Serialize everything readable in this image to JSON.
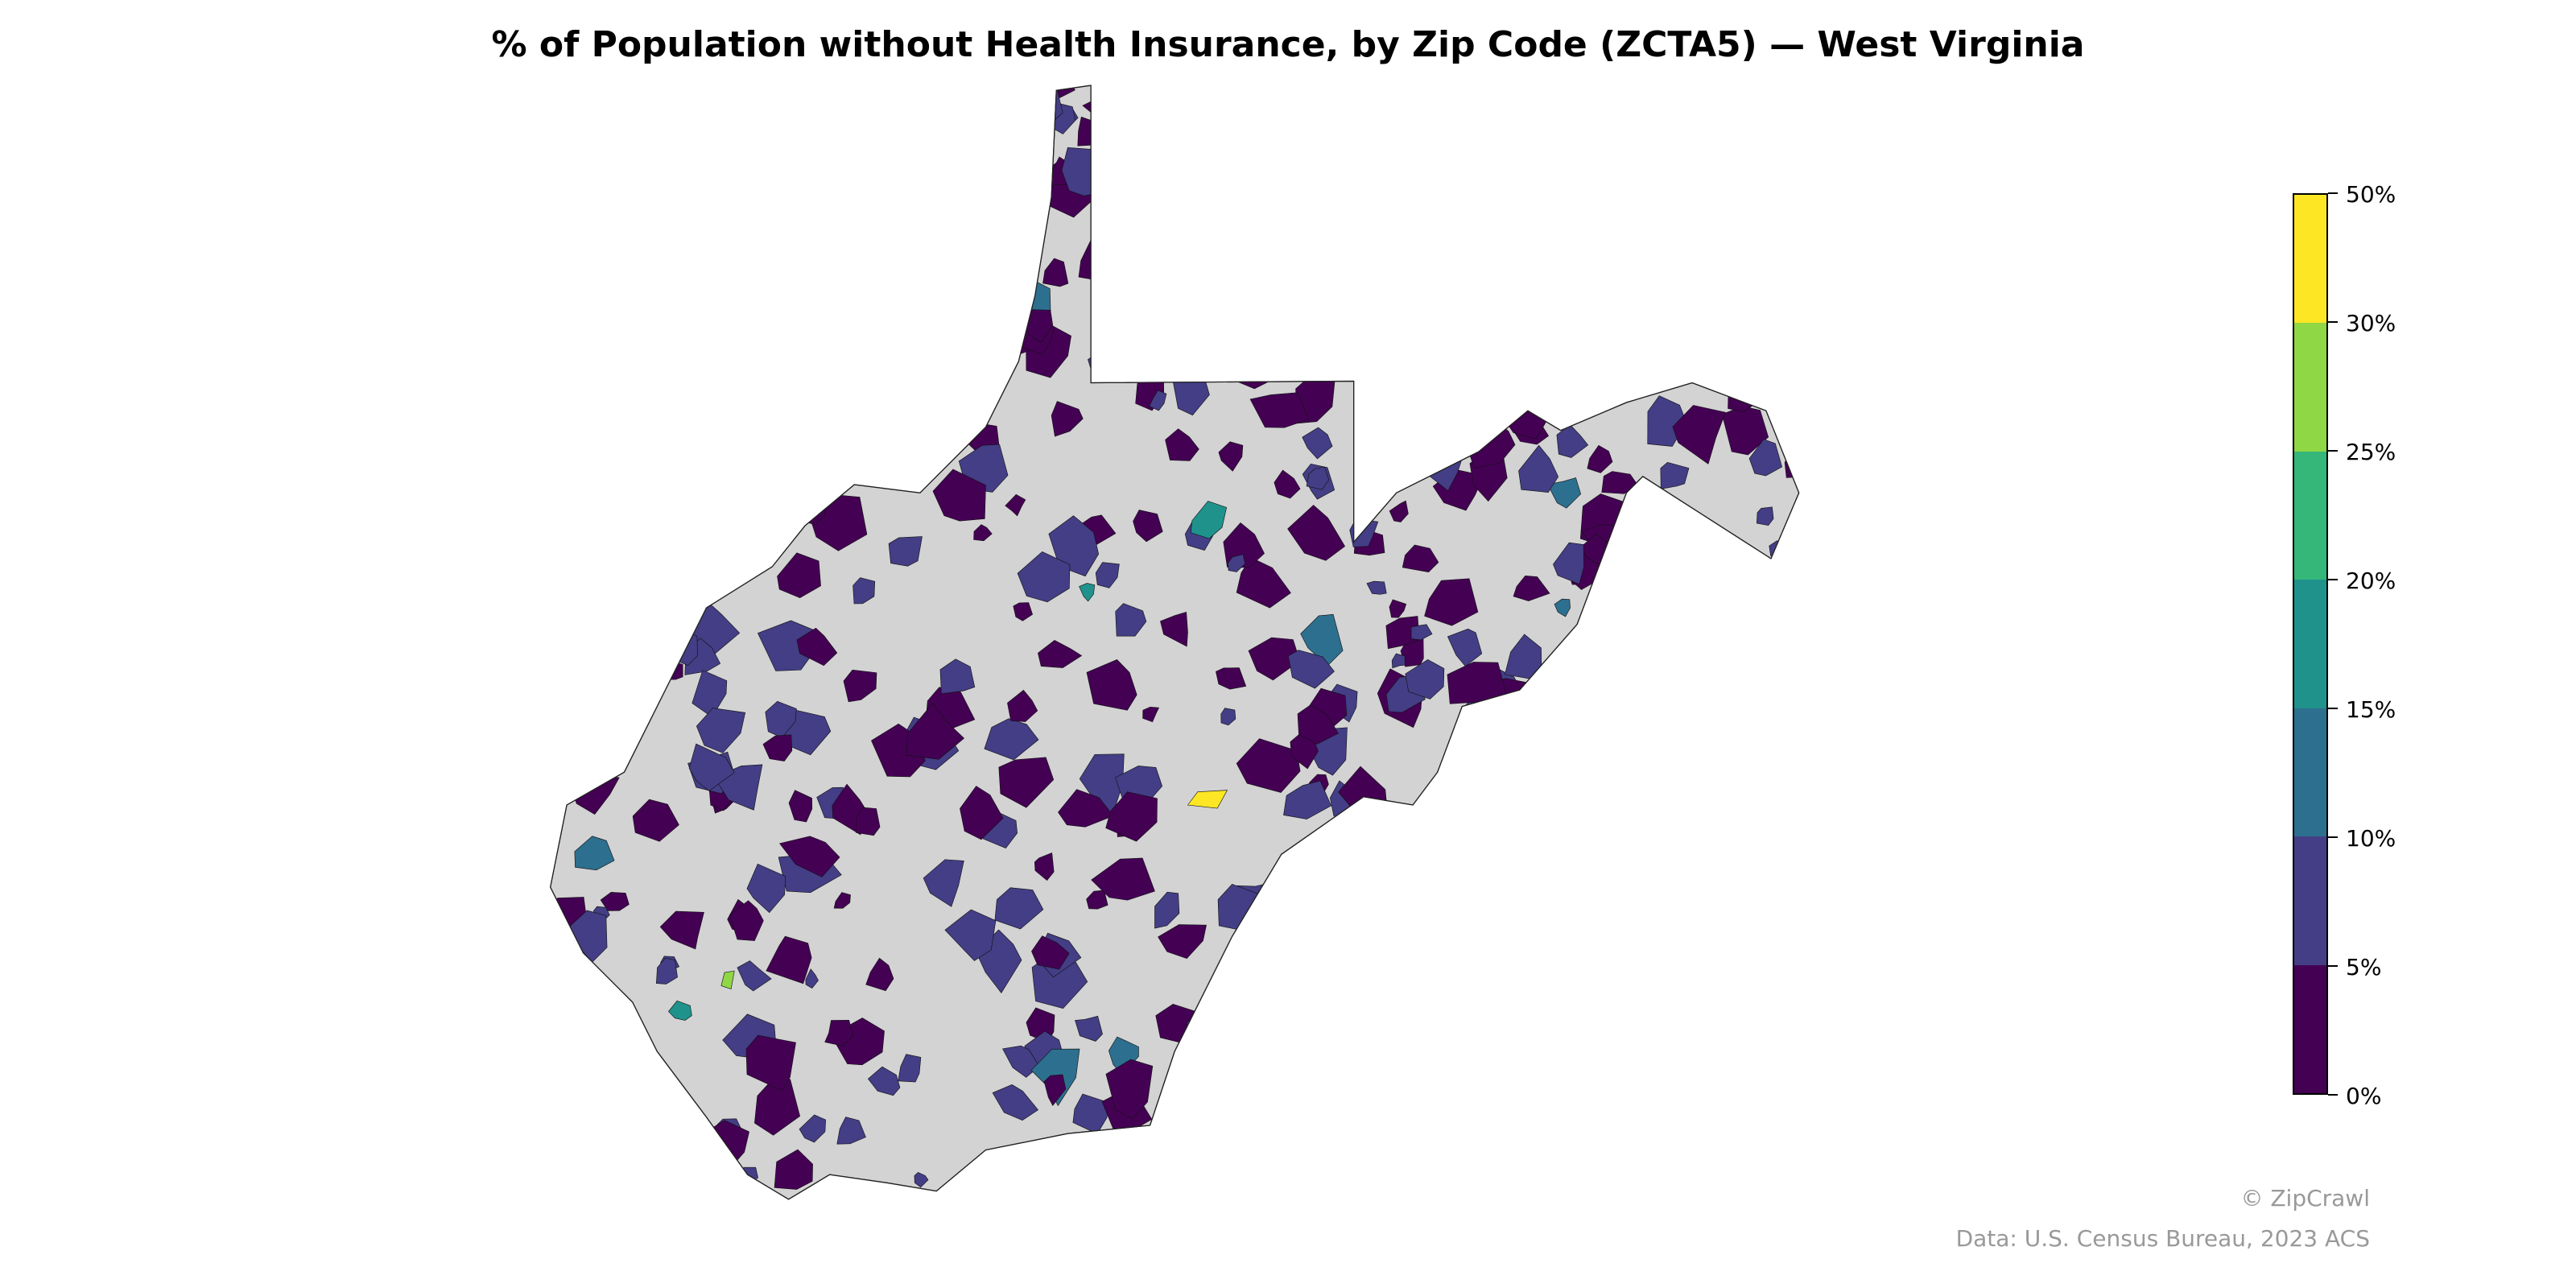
{
  "title": "% of Population without Health Insurance, by Zip Code (ZCTA5) — West Virginia",
  "legend": {
    "ticks": [
      "0%",
      "5%",
      "10%",
      "15%",
      "20%",
      "25%",
      "30%",
      "50%"
    ],
    "colors": [
      "#440154",
      "#433e85",
      "#2d6f8e",
      "#1f928c",
      "#35b779",
      "#8fd744",
      "#fde725"
    ],
    "no_data_color": "#d3d3d3"
  },
  "footer": {
    "credit": "© ZipCrawl",
    "source": "Data: U.S. Census Bureau, 2023 ACS"
  }
}
